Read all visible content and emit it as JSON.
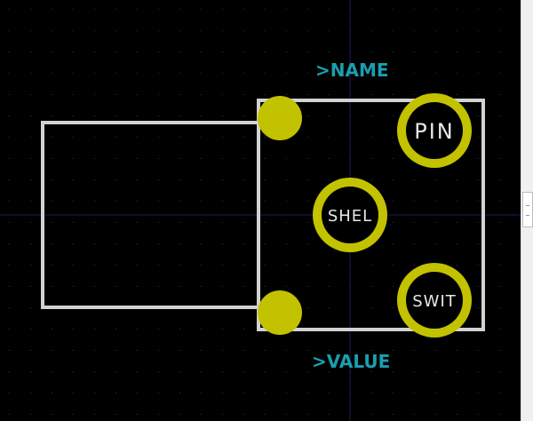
{
  "editor": {
    "colors": {
      "background": "#000000",
      "grid_dot": "#3a3a3a",
      "crosshair": "#1c1c5c",
      "silkscreen": "#d2d2d2",
      "pad_copper": "#c2c200",
      "pad_hole": "#000000",
      "pad_text": "#e8e8e8",
      "fab_text": "#1a9fb0"
    }
  },
  "footprint": {
    "name_field": ">NAME",
    "value_field": ">VALUE",
    "pads": [
      {
        "id": "pin",
        "label": "PIN",
        "type": "through-hole"
      },
      {
        "id": "shell",
        "label": "SHEL",
        "type": "through-hole"
      },
      {
        "id": "switch",
        "label": "SWIT",
        "type": "through-hole"
      },
      {
        "id": "mount-top",
        "label": "",
        "type": "smd-round"
      },
      {
        "id": "mount-bottom",
        "label": "",
        "type": "smd-round"
      }
    ]
  },
  "scrollbar": {
    "grip_icon": "grip-lines-icon"
  }
}
